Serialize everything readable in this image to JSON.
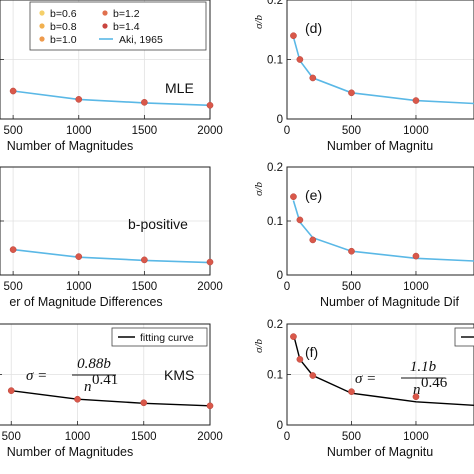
{
  "colors": {
    "points": "#d9584a",
    "aki_line": "#5ab8e6",
    "fit_line": "#000000",
    "b06": "#f5d06a",
    "b08": "#f1b04f",
    "b10": "#ee9a4c",
    "b12": "#e0704e",
    "b14": "#c9453f"
  },
  "chart_data": [
    {
      "panel": "left-top",
      "type": "line",
      "xlabel": "Number of Magnitudes",
      "method_label": "MLE",
      "xticks": [
        "500",
        "1000",
        "1500",
        "2000"
      ],
      "xlim": [
        400,
        2000
      ],
      "ylim": [
        0,
        0.2
      ],
      "legend": {
        "placement": "top",
        "entries": [
          "b=0.6",
          "b=1.2",
          "b=0.8",
          "b=1.4",
          "b=1.0",
          "Aki, 1965"
        ]
      },
      "series": [
        {
          "name": "Aki, 1965",
          "line": "aki",
          "x": [
            500,
            1000,
            1500,
            2000
          ],
          "y": [
            0.047,
            0.033,
            0.027,
            0.023
          ]
        },
        {
          "points": true,
          "x": [
            500,
            1000,
            1500,
            2000
          ],
          "y": [
            0.047,
            0.033,
            0.028,
            0.023
          ]
        }
      ]
    },
    {
      "panel": "d",
      "type": "line",
      "tag": "(d)",
      "xlabel": "Number of Magnitu",
      "ylabel": "σ/b",
      "xticks": [
        "0",
        "500",
        "1000"
      ],
      "yticks": [
        "0",
        "0.1",
        "0.2"
      ],
      "xlim": [
        0,
        1450
      ],
      "ylim": [
        0,
        0.2
      ],
      "series": [
        {
          "name": "Aki, 1965",
          "line": "aki",
          "x": [
            50,
            100,
            200,
            500,
            1000,
            1450
          ],
          "y": [
            0.138,
            0.098,
            0.069,
            0.044,
            0.031,
            0.026
          ]
        },
        {
          "points": true,
          "x": [
            50,
            100,
            200,
            500,
            1000
          ],
          "y": [
            0.14,
            0.1,
            0.069,
            0.044,
            0.031
          ]
        }
      ]
    },
    {
      "panel": "left-middle",
      "type": "line",
      "xlabel": "er of Magnitude Differences",
      "method_label": "b-positive",
      "xticks": [
        "500",
        "1000",
        "1500",
        "2000"
      ],
      "xlim": [
        400,
        2000
      ],
      "ylim": [
        0,
        0.2
      ],
      "series": [
        {
          "name": "Aki, 1965",
          "line": "aki",
          "x": [
            500,
            1000,
            1500,
            2000
          ],
          "y": [
            0.047,
            0.033,
            0.027,
            0.023
          ]
        },
        {
          "points": true,
          "x": [
            500,
            1000,
            1500,
            2000
          ],
          "y": [
            0.047,
            0.034,
            0.028,
            0.024
          ]
        }
      ]
    },
    {
      "panel": "e",
      "type": "line",
      "tag": "(e)",
      "xlabel": "Number of Magnitude Dif",
      "ylabel": "σ/b",
      "xticks": [
        "0",
        "500",
        "1000"
      ],
      "yticks": [
        "0",
        "0.1",
        "0.2"
      ],
      "xlim": [
        0,
        1450
      ],
      "ylim": [
        0,
        0.2
      ],
      "series": [
        {
          "name": "Aki, 1965",
          "line": "aki",
          "x": [
            50,
            100,
            200,
            500,
            1000,
            1450
          ],
          "y": [
            0.138,
            0.098,
            0.069,
            0.044,
            0.031,
            0.026
          ]
        },
        {
          "points": true,
          "x": [
            50,
            100,
            200,
            500,
            1000
          ],
          "y": [
            0.145,
            0.102,
            0.065,
            0.044,
            0.035
          ]
        }
      ]
    },
    {
      "panel": "left-bottom",
      "type": "line",
      "xlabel": "Number of Magnitudes",
      "method_label": "KMS",
      "formula": {
        "lhs": "σ =",
        "num": "0.88b",
        "den": "n",
        "exp": "0.41"
      },
      "xticks": [
        "500",
        "1000",
        "1500",
        "2000"
      ],
      "xlim": [
        400,
        2000
      ],
      "ylim": [
        0,
        0.2
      ],
      "legend": {
        "placement": "top-right",
        "entries": [
          "fitting curve"
        ]
      },
      "series": [
        {
          "name": "fitting curve",
          "line": "fit",
          "x": [
            500,
            1000,
            1500,
            2000
          ],
          "y": [
            0.068,
            0.051,
            0.043,
            0.038
          ]
        },
        {
          "points": true,
          "x": [
            500,
            1000,
            1500,
            2000
          ],
          "y": [
            0.068,
            0.051,
            0.044,
            0.038
          ]
        }
      ]
    },
    {
      "panel": "f",
      "type": "line",
      "tag": "(f)",
      "xlabel": "Number of Magnitu",
      "ylabel": "σ/b",
      "formula": {
        "lhs": "σ =",
        "num": "1.1b",
        "den": "n",
        "exp": "0.46"
      },
      "xticks": [
        "0",
        "500",
        "1000"
      ],
      "yticks": [
        "0",
        "0.1",
        "0.2"
      ],
      "xlim": [
        0,
        1450
      ],
      "ylim": [
        0,
        0.2
      ],
      "series": [
        {
          "line": "fit",
          "x": [
            50,
            100,
            200,
            500,
            1000,
            1450
          ],
          "y": [
            0.18,
            0.13,
            0.098,
            0.063,
            0.046,
            0.039
          ]
        },
        {
          "points": true,
          "x": [
            50,
            100,
            200,
            500,
            1000
          ],
          "y": [
            0.175,
            0.13,
            0.098,
            0.066,
            0.056
          ]
        }
      ]
    }
  ]
}
